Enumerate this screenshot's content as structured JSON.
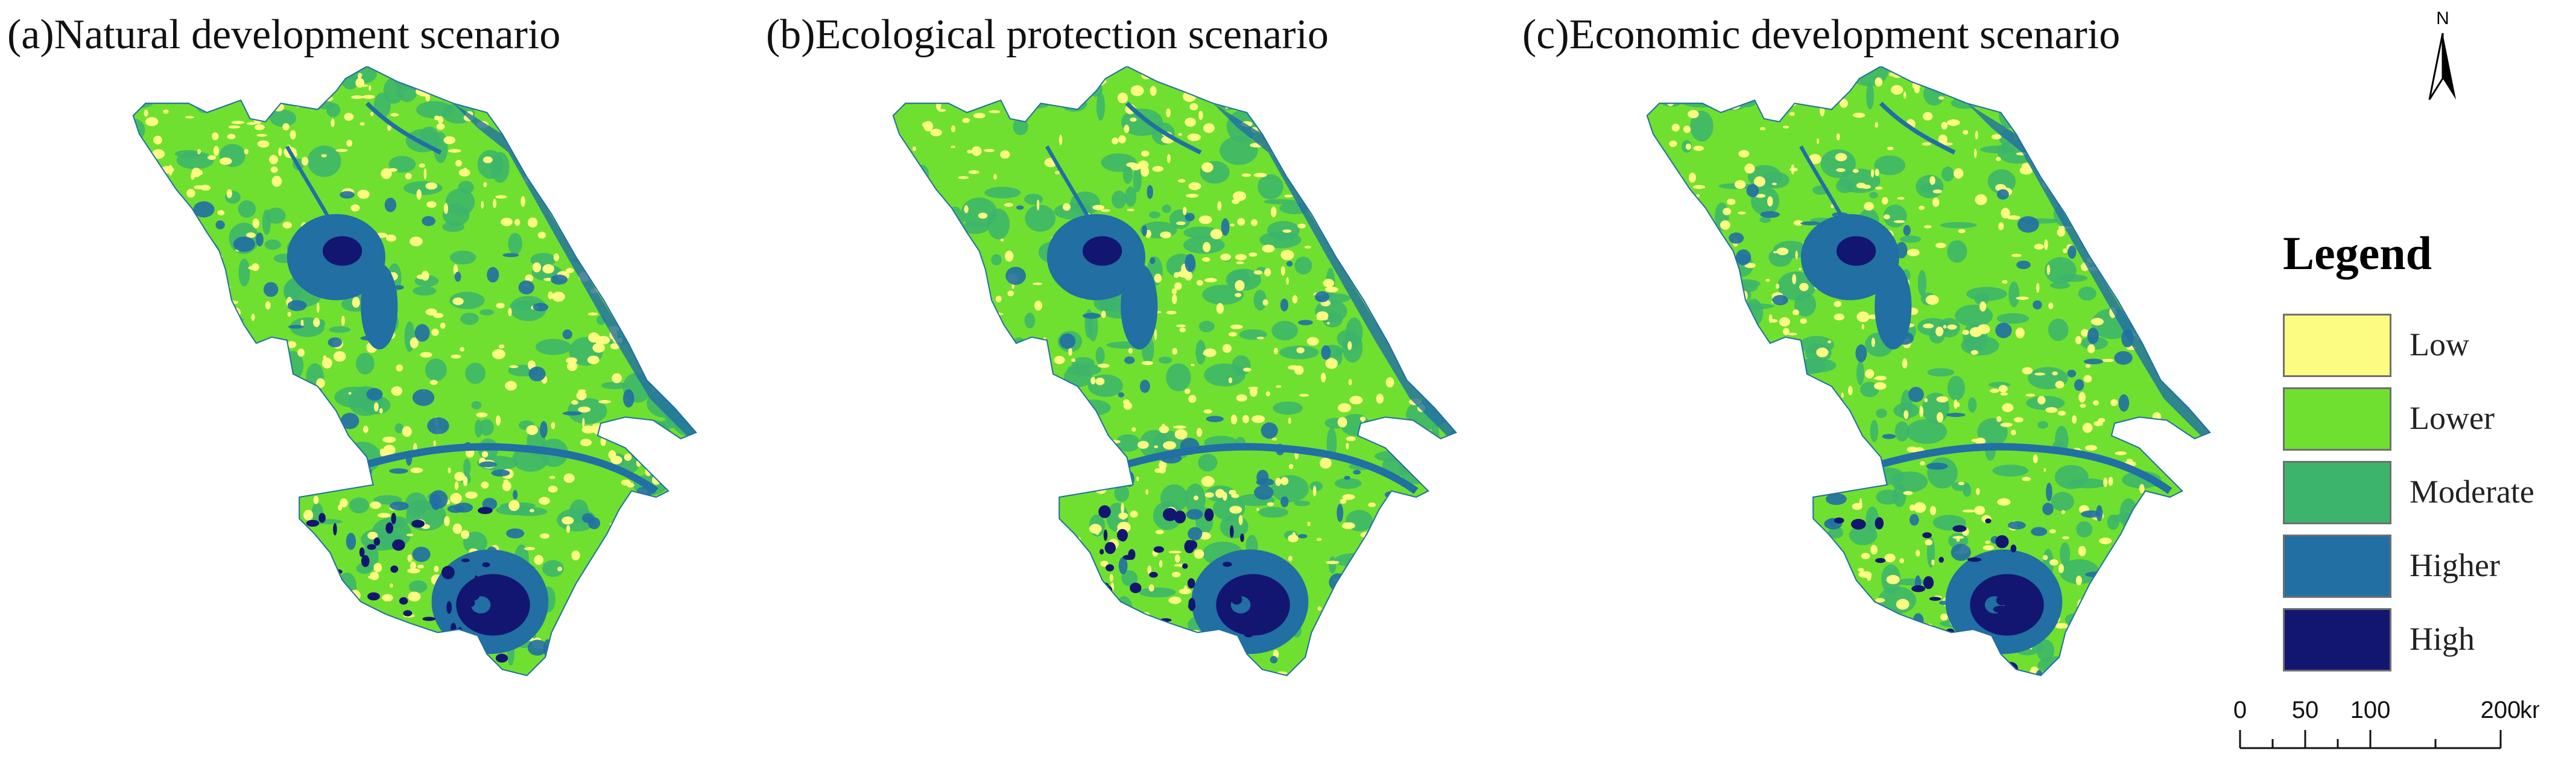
{
  "panels": [
    {
      "title": "(a)Natural development scenario"
    },
    {
      "title": "(b)Ecological protection scenario"
    },
    {
      "title": "(c)Economic development scenario"
    }
  ],
  "north_arrow": {
    "label": "N"
  },
  "legend": {
    "title": "Legend",
    "items": [
      {
        "label": "Low",
        "color": "#fcfc82"
      },
      {
        "label": "Lower",
        "color": "#6fe02f"
      },
      {
        "label": "Moderate",
        "color": "#3cb46c"
      },
      {
        "label": "Higher",
        "color": "#216fa3"
      },
      {
        "label": "High",
        "color": "#121670"
      }
    ]
  },
  "scale_bar": {
    "ticks": [
      "0",
      "50",
      "100",
      "200"
    ],
    "unit": "km"
  },
  "map_colors": {
    "background": "#6fe02f",
    "low": "#fcfc82",
    "moderate": "#3cb46c",
    "higher": "#216fa3",
    "high": "#121670"
  }
}
